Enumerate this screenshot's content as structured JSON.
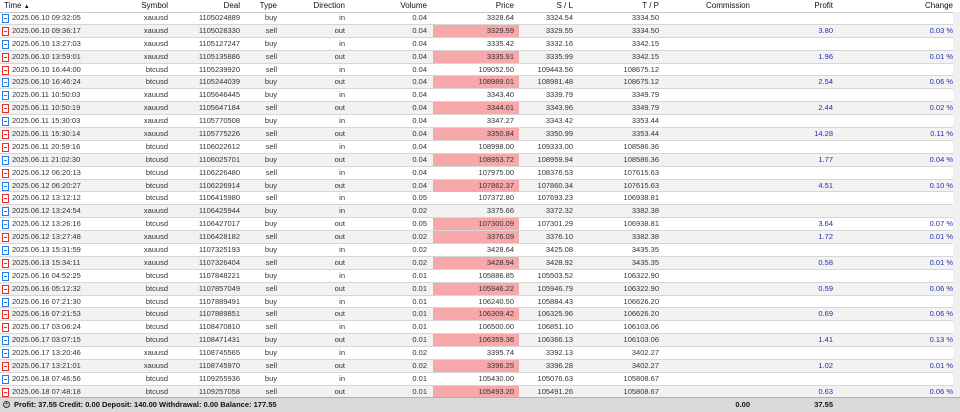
{
  "columns": {
    "time": "Time",
    "sort_indicator": "▲",
    "symbol": "Symbol",
    "deal": "Deal",
    "type": "Type",
    "direction": "Direction",
    "volume": "Volume",
    "price": "Price",
    "sl": "S / L",
    "tp": "T / P",
    "commission": "Commission",
    "profit": "Profit",
    "change": "Change"
  },
  "colors": {
    "highlight": "#f7a8ab",
    "buy_icon": "#2a7be4",
    "sell_icon": "#e0302a",
    "profit_text": "#2430b0"
  },
  "rows": [
    {
      "time": "2025.06.10 09:32:05",
      "symbol": "xauusd",
      "deal": "1105024889",
      "type": "buy",
      "direction": "in",
      "volume": "0.04",
      "price": "3328.64",
      "sl": "3324.54",
      "tp": "3334.50",
      "profit": "",
      "change": "",
      "hl": false
    },
    {
      "time": "2025.06.10 09:36:17",
      "symbol": "xauusd",
      "deal": "1105028330",
      "type": "sell",
      "direction": "out",
      "volume": "0.04",
      "price": "3329.59",
      "sl": "3329.55",
      "tp": "3334.50",
      "profit": "3.80",
      "change": "0.03 %",
      "hl": true
    },
    {
      "time": "2025.06.10 13:27:03",
      "symbol": "xauusd",
      "deal": "1105127247",
      "type": "buy",
      "direction": "in",
      "volume": "0.04",
      "price": "3335.42",
      "sl": "3332.16",
      "tp": "3342.15",
      "profit": "",
      "change": "",
      "hl": false
    },
    {
      "time": "2025.06.10 13:59:01",
      "symbol": "xauusd",
      "deal": "1105135886",
      "type": "sell",
      "direction": "out",
      "volume": "0.04",
      "price": "3335.91",
      "sl": "3335.99",
      "tp": "3342.15",
      "profit": "1.96",
      "change": "0.01 %",
      "hl": true
    },
    {
      "time": "2025.06.10 16:44:00",
      "symbol": "btcusd",
      "deal": "1105239920",
      "type": "sell",
      "direction": "in",
      "volume": "0.04",
      "price": "109052.50",
      "sl": "109443.56",
      "tp": "108675.12",
      "profit": "",
      "change": "",
      "hl": false
    },
    {
      "time": "2025.06.10 16:46:24",
      "symbol": "btcusd",
      "deal": "1105244039",
      "type": "buy",
      "direction": "out",
      "volume": "0.04",
      "price": "108989.01",
      "sl": "108981.48",
      "tp": "108675.12",
      "profit": "2.54",
      "change": "0.06 %",
      "hl": true
    },
    {
      "time": "2025.06.11 10:50:03",
      "symbol": "xauusd",
      "deal": "1105646445",
      "type": "buy",
      "direction": "in",
      "volume": "0.04",
      "price": "3343.40",
      "sl": "3339.79",
      "tp": "3349.79",
      "profit": "",
      "change": "",
      "hl": false
    },
    {
      "time": "2025.06.11 10:50:19",
      "symbol": "xauusd",
      "deal": "1105647184",
      "type": "sell",
      "direction": "out",
      "volume": "0.04",
      "price": "3344.01",
      "sl": "3343.96",
      "tp": "3349.79",
      "profit": "2.44",
      "change": "0.02 %",
      "hl": true
    },
    {
      "time": "2025.06.11 15:30:03",
      "symbol": "xauusd",
      "deal": "1105770508",
      "type": "buy",
      "direction": "in",
      "volume": "0.04",
      "price": "3347.27",
      "sl": "3343.42",
      "tp": "3353.44",
      "profit": "",
      "change": "",
      "hl": false
    },
    {
      "time": "2025.06.11 15:30:14",
      "symbol": "xauusd",
      "deal": "1105775226",
      "type": "sell",
      "direction": "out",
      "volume": "0.04",
      "price": "3350.84",
      "sl": "3350.99",
      "tp": "3353.44",
      "profit": "14.28",
      "change": "0.11 %",
      "hl": true
    },
    {
      "time": "2025.06.11 20:59:16",
      "symbol": "btcusd",
      "deal": "1106022612",
      "type": "sell",
      "direction": "in",
      "volume": "0.04",
      "price": "108998.00",
      "sl": "109333.00",
      "tp": "108586.36",
      "profit": "",
      "change": "",
      "hl": false
    },
    {
      "time": "2025.06.11 21:02:30",
      "symbol": "btcusd",
      "deal": "1106025701",
      "type": "buy",
      "direction": "out",
      "volume": "0.04",
      "price": "108953.72",
      "sl": "108959.94",
      "tp": "108586.36",
      "profit": "1.77",
      "change": "0.04 %",
      "hl": true
    },
    {
      "time": "2025.06.12 06:20:13",
      "symbol": "btcusd",
      "deal": "1106226480",
      "type": "sell",
      "direction": "in",
      "volume": "0.04",
      "price": "107975.00",
      "sl": "108376.53",
      "tp": "107615.63",
      "profit": "",
      "change": "",
      "hl": false
    },
    {
      "time": "2025.06.12 06:20:27",
      "symbol": "btcusd",
      "deal": "1106226914",
      "type": "buy",
      "direction": "out",
      "volume": "0.04",
      "price": "107862.37",
      "sl": "107860.34",
      "tp": "107615.63",
      "profit": "4.51",
      "change": "0.10 %",
      "hl": true
    },
    {
      "time": "2025.06.12 13:12:12",
      "symbol": "btcusd",
      "deal": "1106415980",
      "type": "sell",
      "direction": "in",
      "volume": "0.05",
      "price": "107372.80",
      "sl": "107693.23",
      "tp": "106938.81",
      "profit": "",
      "change": "",
      "hl": false
    },
    {
      "time": "2025.06.12 13:24:54",
      "symbol": "xauusd",
      "deal": "1106425944",
      "type": "buy",
      "direction": "in",
      "volume": "0.02",
      "price": "3375.66",
      "sl": "3372.32",
      "tp": "3382.38",
      "profit": "",
      "change": "",
      "hl": false
    },
    {
      "time": "2025.06.12 13:26:16",
      "symbol": "btcusd",
      "deal": "1106427017",
      "type": "buy",
      "direction": "out",
      "volume": "0.05",
      "price": "107300.09",
      "sl": "107301.29",
      "tp": "106938.81",
      "profit": "3.64",
      "change": "0.07 %",
      "hl": true
    },
    {
      "time": "2025.06.12 13:27:48",
      "symbol": "xauusd",
      "deal": "1106428182",
      "type": "sell",
      "direction": "out",
      "volume": "0.02",
      "price": "3376.09",
      "sl": "3376.10",
      "tp": "3382.38",
      "profit": "1.72",
      "change": "0.01 %",
      "hl": true
    },
    {
      "time": "2025.06.13 15:31:59",
      "symbol": "xauusd",
      "deal": "1107325193",
      "type": "buy",
      "direction": "in",
      "volume": "0.02",
      "price": "3428.64",
      "sl": "3425.08",
      "tp": "3435.35",
      "profit": "",
      "change": "",
      "hl": false
    },
    {
      "time": "2025.06.13 15:34:11",
      "symbol": "xauusd",
      "deal": "1107326404",
      "type": "sell",
      "direction": "out",
      "volume": "0.02",
      "price": "3428.94",
      "sl": "3428.92",
      "tp": "3435.35",
      "profit": "0.58",
      "change": "0.01 %",
      "hl": true
    },
    {
      "time": "2025.06.16 04:52:25",
      "symbol": "btcusd",
      "deal": "1107848221",
      "type": "buy",
      "direction": "in",
      "volume": "0.01",
      "price": "105886.85",
      "sl": "105503.52",
      "tp": "106322.90",
      "profit": "",
      "change": "",
      "hl": false
    },
    {
      "time": "2025.06.16 05:12:32",
      "symbol": "btcusd",
      "deal": "1107857049",
      "type": "sell",
      "direction": "out",
      "volume": "0.01",
      "price": "105946.22",
      "sl": "105946.79",
      "tp": "106322.90",
      "profit": "0.59",
      "change": "0.06 %",
      "hl": true
    },
    {
      "time": "2025.06.16 07:21:30",
      "symbol": "btcusd",
      "deal": "1107889491",
      "type": "buy",
      "direction": "in",
      "volume": "0.01",
      "price": "106240.50",
      "sl": "105884.43",
      "tp": "106626.20",
      "profit": "",
      "change": "",
      "hl": false
    },
    {
      "time": "2025.06.16 07:21:53",
      "symbol": "btcusd",
      "deal": "1107889851",
      "type": "sell",
      "direction": "out",
      "volume": "0.01",
      "price": "106309.42",
      "sl": "106325.96",
      "tp": "106626.20",
      "profit": "0.69",
      "change": "0.06 %",
      "hl": true
    },
    {
      "time": "2025.06.17 03:06:24",
      "symbol": "btcusd",
      "deal": "1108470810",
      "type": "sell",
      "direction": "in",
      "volume": "0.01",
      "price": "106500.00",
      "sl": "106851.10",
      "tp": "106103.06",
      "profit": "",
      "change": "",
      "hl": false
    },
    {
      "time": "2025.06.17 03:07:15",
      "symbol": "btcusd",
      "deal": "1108471431",
      "type": "buy",
      "direction": "out",
      "volume": "0.01",
      "price": "106359.36",
      "sl": "106366.13",
      "tp": "106103.06",
      "profit": "1.41",
      "change": "0.13 %",
      "hl": true
    },
    {
      "time": "2025.06.17 13:20:46",
      "symbol": "xauusd",
      "deal": "1108745565",
      "type": "buy",
      "direction": "in",
      "volume": "0.02",
      "price": "3395.74",
      "sl": "3392.13",
      "tp": "3402.27",
      "profit": "",
      "change": "",
      "hl": false
    },
    {
      "time": "2025.06.17 13:21:01",
      "symbol": "xauusd",
      "deal": "1108745970",
      "type": "sell",
      "direction": "out",
      "volume": "0.02",
      "price": "3396.25",
      "sl": "3396.28",
      "tp": "3402.27",
      "profit": "1.02",
      "change": "0.01 %",
      "hl": true
    },
    {
      "time": "2025.06.18 07:46:56",
      "symbol": "btcusd",
      "deal": "1109255936",
      "type": "buy",
      "direction": "in",
      "volume": "0.01",
      "price": "105430.00",
      "sl": "105076.63",
      "tp": "105808.67",
      "profit": "",
      "change": "",
      "hl": false
    },
    {
      "time": "2025.06.18 07:48:18",
      "symbol": "btcusd",
      "deal": "1109257058",
      "type": "sell",
      "direction": "out",
      "volume": "0.01",
      "price": "105493.20",
      "sl": "105491.26",
      "tp": "105808.67",
      "profit": "0.63",
      "change": "0.06 %",
      "hl": true
    }
  ],
  "footer": {
    "icon": "plus-circle-icon",
    "icon_glyph": "+",
    "summary": "Profit: 37.55  Credit: 0.00  Deposit: 140.00  Withdrawal: 0.00  Balance: 177.55",
    "commission_total": "0.00",
    "profit_total": "37.55"
  }
}
